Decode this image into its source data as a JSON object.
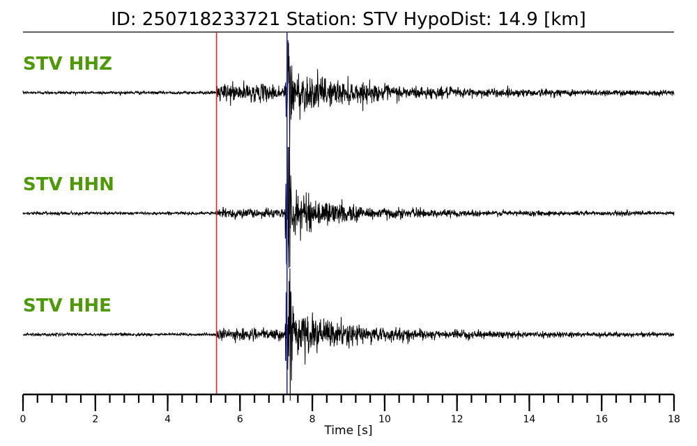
{
  "chart_data": {
    "type": "line",
    "title": "ID: 250718233721   Station: STV   HypoDist:    14.9 [km]",
    "xlabel": "Time [s]",
    "xlim": [
      0,
      18
    ],
    "x_major_ticks": [
      0,
      2,
      4,
      6,
      8,
      10,
      12,
      14,
      16,
      18
    ],
    "x_tick_labels": [
      "0",
      "2",
      "4",
      "6",
      "8",
      "10",
      "12",
      "14",
      "16",
      "18"
    ],
    "x_minor_step": 0.4,
    "grid": false,
    "label_color": "#4e9a06",
    "trace_color": "#000000",
    "series": [
      {
        "name": "STV HHZ",
        "noise_amp": 0.02,
        "onset_time": 5.35,
        "p_coda_amp": 0.11,
        "s_time": 7.3,
        "s_peak_amp": 0.68,
        "s_coda_amp": 0.22,
        "decay": 0.7
      },
      {
        "name": "STV HHN",
        "noise_amp": 0.02,
        "onset_time": 5.35,
        "p_coda_amp": 0.05,
        "s_time": 7.3,
        "s_peak_amp": 0.9,
        "s_coda_amp": 0.26,
        "decay": 0.75
      },
      {
        "name": "STV HHE",
        "noise_amp": 0.02,
        "onset_time": 5.35,
        "p_coda_amp": 0.06,
        "s_time": 7.3,
        "s_peak_amp": 0.95,
        "s_coda_amp": 0.3,
        "decay": 0.7
      }
    ],
    "picks": [
      {
        "phase": "P",
        "time": 5.35,
        "color": "#e8231a"
      },
      {
        "phase": "S",
        "time": 7.3,
        "color": "#1f2de0"
      }
    ]
  }
}
